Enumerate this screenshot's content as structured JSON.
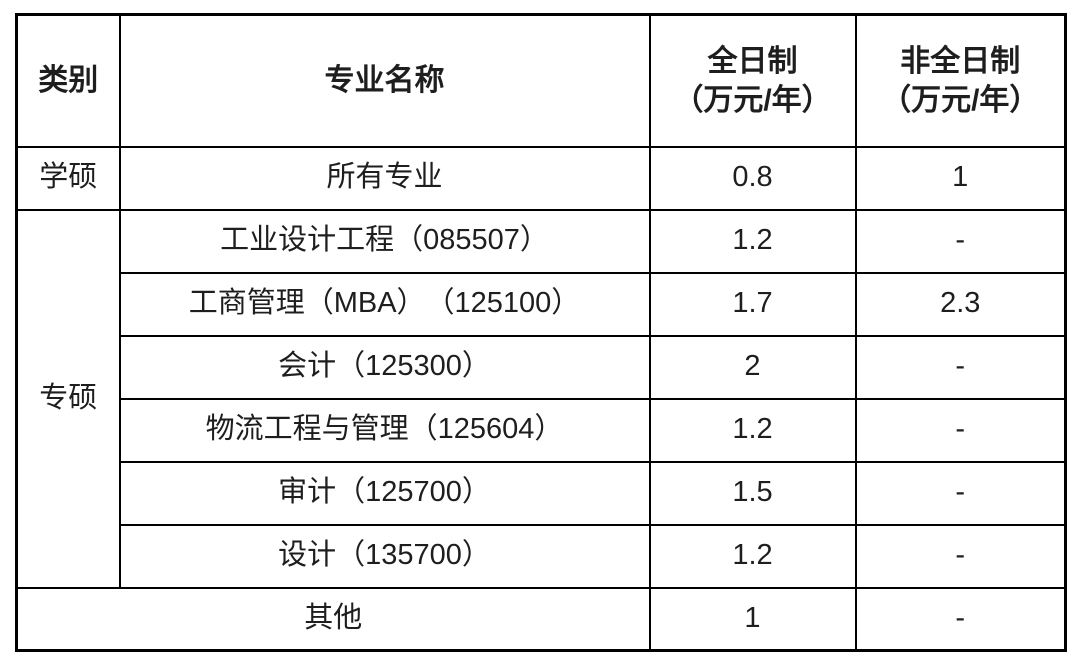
{
  "table": {
    "headers": {
      "category": "类别",
      "major": "专业名称",
      "fulltime_line1": "全日制",
      "fulltime_line2": "（万元/年）",
      "parttime_line1": "非全日制",
      "parttime_line2": "（万元/年）"
    },
    "xueshuo": {
      "category": "学硕",
      "major": "所有专业",
      "fulltime": "0.8",
      "parttime": "1"
    },
    "zhuanshuo": {
      "category": "专硕",
      "rows": [
        {
          "major": "工业设计工程（085507）",
          "fulltime": "1.2",
          "parttime": "-"
        },
        {
          "major": "工商管理（MBA）　（125100）",
          "fulltime": "1.7",
          "parttime": "2.3"
        },
        {
          "major": "会计（125300）",
          "fulltime": "2",
          "parttime": "-"
        },
        {
          "major": "物流工程与管理（125604）",
          "fulltime": "1.2",
          "parttime": "-"
        },
        {
          "major": "审计（125700）",
          "fulltime": "1.5",
          "parttime": "-"
        },
        {
          "major": "设计（135700）",
          "fulltime": "1.2",
          "parttime": "-"
        }
      ]
    },
    "other": {
      "label": "其他",
      "fulltime": "1",
      "parttime": "-"
    }
  }
}
